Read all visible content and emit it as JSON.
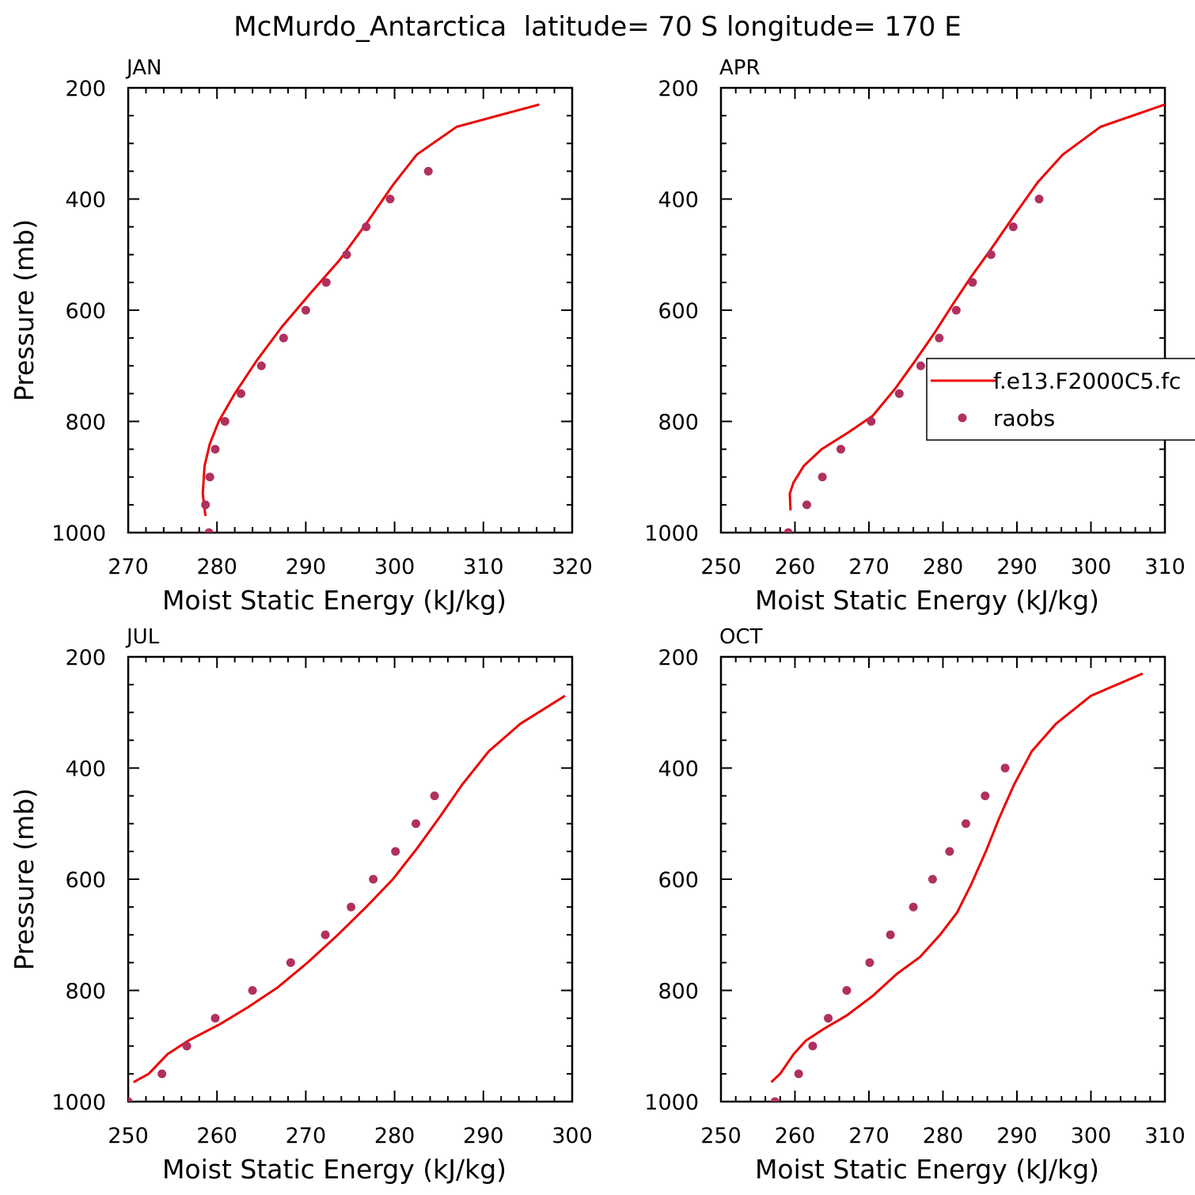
{
  "figure": {
    "title": "McMurdo_Antarctica  latitude= 70 S longitude= 170 E"
  },
  "colors": {
    "model": "#ee0000",
    "obs": "#b03060",
    "axes": "#000000"
  },
  "legend": {
    "model_label": "f.e13.F2000C5.fc",
    "obs_label": "raobs"
  },
  "chart_data": [
    {
      "type": "line",
      "panel": "JAN",
      "xlabel": "Moist Static Energy (kJ/kg)",
      "ylabel": "Pressure (mb)",
      "xlim": [
        270,
        320
      ],
      "ylim": [
        1000,
        200
      ],
      "xticks": [
        270,
        280,
        290,
        300,
        310,
        320
      ],
      "yticks": [
        200,
        400,
        600,
        800,
        1000
      ],
      "grid": false,
      "series": [
        {
          "name": "f.e13.F2000C5.fc",
          "kind": "line",
          "x": [
            278.7,
            278.4,
            278.6,
            279.2,
            280.2,
            282.0,
            284.5,
            287.3,
            290.5,
            293.8,
            297.0,
            299.8,
            302.5,
            307.0,
            316.3
          ],
          "y": [
            970,
            930,
            880,
            840,
            800,
            750,
            690,
            630,
            570,
            510,
            440,
            375,
            320,
            270,
            230
          ]
        },
        {
          "name": "raobs",
          "kind": "scatter",
          "x": [
            279.1,
            278.7,
            279.2,
            279.8,
            280.9,
            282.7,
            285.0,
            287.5,
            290.0,
            292.3,
            294.6,
            296.8,
            299.5,
            303.8
          ],
          "y": [
            1000,
            950,
            900,
            850,
            800,
            750,
            700,
            650,
            600,
            550,
            500,
            450,
            400,
            350
          ]
        }
      ]
    },
    {
      "type": "line",
      "panel": "APR",
      "xlabel": "Moist Static Energy (kJ/kg)",
      "ylabel": "",
      "xlim": [
        250,
        310
      ],
      "ylim": [
        1000,
        200
      ],
      "xticks": [
        250,
        260,
        270,
        280,
        290,
        300,
        310
      ],
      "yticks": [
        200,
        400,
        600,
        800,
        1000
      ],
      "grid": false,
      "series": [
        {
          "name": "f.e13.F2000C5.fc",
          "kind": "line",
          "x": [
            259.4,
            259.3,
            259.8,
            261.2,
            263.6,
            267.2,
            270.5,
            273.6,
            276.3,
            278.9,
            281.3,
            283.8,
            286.5,
            289.6,
            292.8,
            296.2,
            301.3,
            310.0
          ],
          "y": [
            960,
            930,
            910,
            880,
            850,
            820,
            790,
            740,
            690,
            640,
            590,
            540,
            490,
            430,
            370,
            320,
            270,
            230
          ]
        },
        {
          "name": "raobs",
          "kind": "scatter",
          "x": [
            259.1,
            261.6,
            263.7,
            266.2,
            270.3,
            274.1,
            277.0,
            279.5,
            281.8,
            284.0,
            286.5,
            289.5,
            293.0
          ],
          "y": [
            1000,
            950,
            900,
            850,
            800,
            750,
            700,
            650,
            600,
            550,
            500,
            450,
            400
          ]
        }
      ]
    },
    {
      "type": "line",
      "panel": "JUL",
      "xlabel": "Moist Static Energy (kJ/kg)",
      "ylabel": "Pressure (mb)",
      "xlim": [
        250,
        300
      ],
      "ylim": [
        1000,
        200
      ],
      "xticks": [
        250,
        260,
        270,
        280,
        290,
        300
      ],
      "yticks": [
        200,
        400,
        600,
        800,
        1000
      ],
      "grid": false,
      "series": [
        {
          "name": "f.e13.F2000C5.fc",
          "kind": "line",
          "x": [
            250.6,
            252.3,
            254.4,
            256.8,
            260.4,
            263.5,
            266.8,
            270.2,
            273.6,
            276.8,
            279.8,
            282.5,
            285.0,
            287.6,
            290.6,
            294.2,
            299.2
          ],
          "y": [
            965,
            950,
            915,
            890,
            860,
            830,
            795,
            750,
            700,
            650,
            600,
            545,
            490,
            430,
            370,
            320,
            270
          ]
        },
        {
          "name": "raobs",
          "kind": "scatter",
          "x": [
            250.0,
            253.8,
            256.6,
            259.8,
            264.0,
            268.3,
            272.2,
            275.1,
            277.6,
            280.1,
            282.4,
            284.5
          ],
          "y": [
            1000,
            950,
            900,
            850,
            800,
            750,
            700,
            650,
            600,
            550,
            500,
            450
          ]
        }
      ]
    },
    {
      "type": "line",
      "panel": "OCT",
      "xlabel": "Moist Static Energy (kJ/kg)",
      "ylabel": "",
      "xlim": [
        250,
        310
      ],
      "ylim": [
        1000,
        200
      ],
      "xticks": [
        250,
        260,
        270,
        280,
        290,
        300,
        310
      ],
      "yticks": [
        200,
        400,
        600,
        800,
        1000
      ],
      "grid": false,
      "series": [
        {
          "name": "f.e13.F2000C5.fc",
          "kind": "line",
          "x": [
            256.8,
            258.0,
            259.8,
            261.5,
            263.8,
            267.0,
            270.5,
            273.8,
            276.9,
            279.6,
            281.9,
            283.8,
            285.8,
            287.6,
            289.6,
            292.0,
            295.3,
            300.0,
            307.0
          ],
          "y": [
            965,
            950,
            915,
            890,
            870,
            845,
            810,
            770,
            740,
            700,
            660,
            610,
            550,
            490,
            430,
            370,
            320,
            270,
            230
          ]
        },
        {
          "name": "raobs",
          "kind": "scatter",
          "x": [
            257.3,
            260.5,
            262.4,
            264.5,
            267.0,
            270.1,
            272.9,
            276.0,
            278.6,
            280.9,
            283.1,
            285.7,
            288.4
          ],
          "y": [
            1000,
            950,
            900,
            850,
            800,
            750,
            700,
            650,
            600,
            550,
            500,
            450,
            400
          ]
        }
      ]
    }
  ]
}
